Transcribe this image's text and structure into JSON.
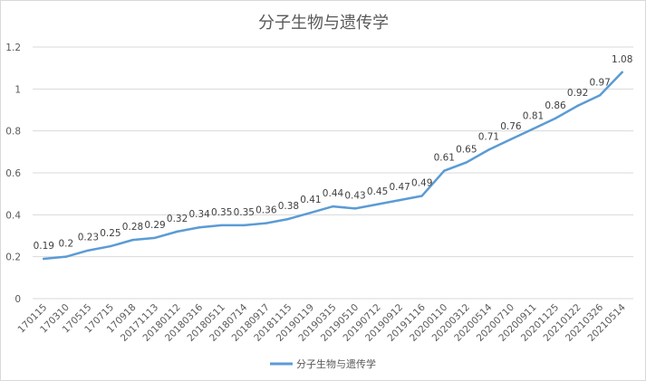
{
  "chart_data": {
    "type": "line",
    "title": "分子生物与遗传学",
    "xlabel": "",
    "ylabel": "",
    "ylim": [
      0,
      1.2
    ],
    "yticks": [
      "0",
      "0.2",
      "0.4",
      "0.6",
      "0.8",
      "1",
      "1.2"
    ],
    "grid": true,
    "legend_position": "bottom",
    "categories": [
      "170115",
      "170310",
      "170515",
      "170715",
      "170918",
      "20171113",
      "20180112",
      "20180316",
      "20180511",
      "20180714",
      "20180917",
      "20181115",
      "20190119",
      "20190315",
      "20190510",
      "20190712",
      "20190912",
      "20191116",
      "20200110",
      "20200312",
      "20200514",
      "20200710",
      "20200911",
      "20201125",
      "20210122",
      "20210326",
      "20210514"
    ],
    "series": [
      {
        "name": "分子生物与遗传学",
        "color": "#5b9bd5",
        "values": [
          0.19,
          0.2,
          0.23,
          0.25,
          0.28,
          0.29,
          0.32,
          0.34,
          0.35,
          0.35,
          0.36,
          0.38,
          0.41,
          0.44,
          0.43,
          0.45,
          0.47,
          0.49,
          0.61,
          0.65,
          0.71,
          0.76,
          0.81,
          0.86,
          0.92,
          0.97,
          1.08
        ],
        "labels": [
          "0.19",
          "0.2",
          "0.23",
          "0.25",
          "0.28",
          "0.29",
          "0.32",
          "0.34",
          "0.35",
          "0.35",
          "0.36",
          "0.38",
          "0.41",
          "0.44",
          "0.43",
          "0.45",
          "0.47",
          "0.49",
          "0.61",
          "0.65",
          "0.71",
          "0.76",
          "0.81",
          "0.86",
          "0.92",
          "0.97",
          "1.08"
        ]
      }
    ]
  }
}
